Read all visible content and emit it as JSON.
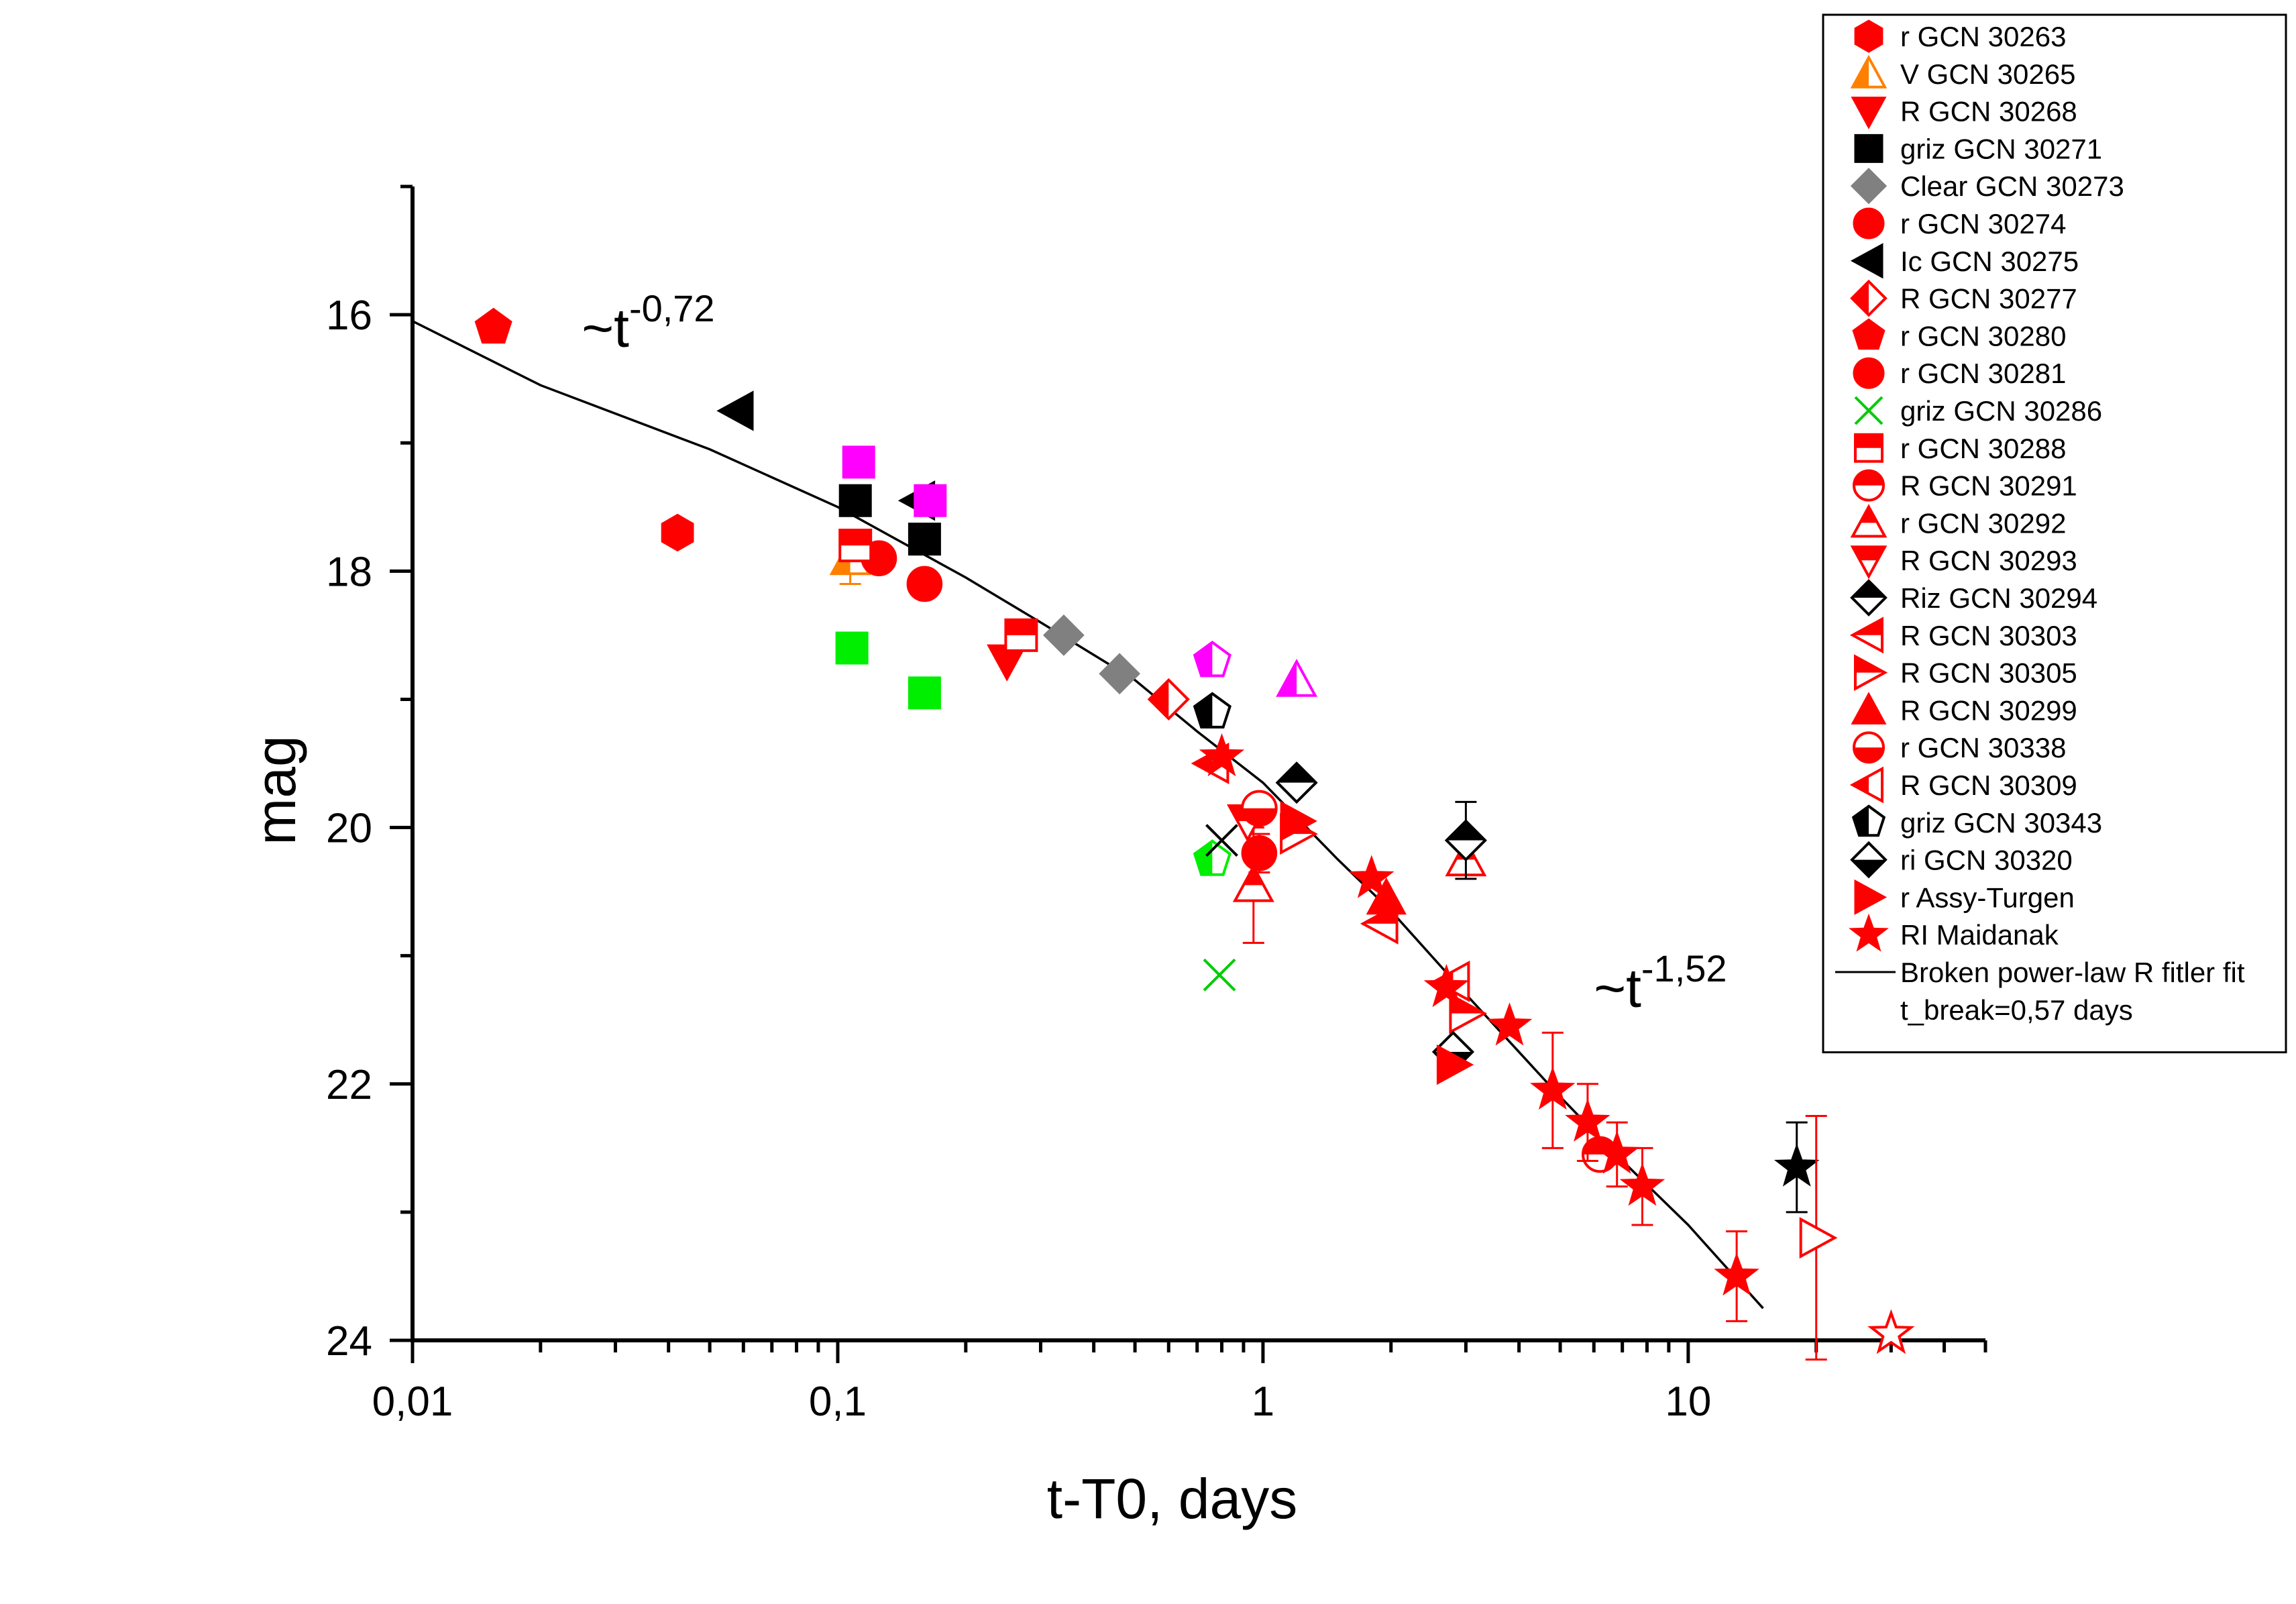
{
  "chart_data": {
    "type": "scatter",
    "xlabel": "t-T0, days",
    "ylabel": "mag",
    "xscale": "log",
    "xlim": [
      0.01,
      50
    ],
    "ylim": [
      24,
      15
    ],
    "x_ticks": [
      {
        "value": 0.01,
        "label": "0,01"
      },
      {
        "value": 0.1,
        "label": "0,1"
      },
      {
        "value": 1,
        "label": "1"
      },
      {
        "value": 10,
        "label": "10"
      }
    ],
    "y_ticks": [
      {
        "value": 16,
        "label": "16"
      },
      {
        "value": 18,
        "label": "18"
      },
      {
        "value": 20,
        "label": "20"
      },
      {
        "value": 22,
        "label": "22"
      },
      {
        "value": 24,
        "label": "24"
      }
    ],
    "legend_position": "top-right",
    "annotations": [
      {
        "base": "~t",
        "exp": "-0,72",
        "x": 0.025,
        "y": 16.25
      },
      {
        "base": "~t",
        "exp": "-1,52",
        "x": 6.0,
        "y": 21.4
      }
    ],
    "fit": {
      "name": "Broken power-law R fitler fit",
      "note": "t_break=0,57 days",
      "x": [
        0.01,
        0.02,
        0.05,
        0.1,
        0.2,
        0.3,
        0.5,
        0.7,
        1.0,
        1.5,
        2.0,
        3.0,
        5.0,
        7.0,
        10.0,
        15.0
      ],
      "y": [
        16.05,
        16.55,
        17.05,
        17.5,
        18.05,
        18.4,
        18.85,
        19.25,
        19.65,
        20.25,
        20.65,
        21.3,
        22.1,
        22.6,
        23.1,
        23.75
      ]
    },
    "series": [
      {
        "name": "r GCN 30263",
        "marker": "hexagon",
        "color": "#ff0000",
        "fill": "full",
        "points": [
          {
            "x": 0.042,
            "y": 17.7
          }
        ]
      },
      {
        "name": "V GCN 30265",
        "marker": "triangle-up",
        "color": "#ff8000",
        "fill": "half-left",
        "points": [
          {
            "x": 0.107,
            "y": 17.9,
            "err": 0.2
          }
        ]
      },
      {
        "name": "R GCN 30268",
        "marker": "triangle-down",
        "color": "#ff0000",
        "fill": "full",
        "points": [
          {
            "x": 0.25,
            "y": 18.7
          }
        ]
      },
      {
        "name": "griz GCN 30271",
        "marker": "square",
        "color": "#000000",
        "fill": "full",
        "points": [
          {
            "x": 0.11,
            "y": 17.45
          },
          {
            "x": 0.16,
            "y": 17.75
          }
        ]
      },
      {
        "name": "Clear GCN 30273",
        "marker": "diamond",
        "color": "#808080",
        "fill": "full",
        "points": [
          {
            "x": 0.34,
            "y": 18.5
          },
          {
            "x": 0.46,
            "y": 18.8
          }
        ]
      },
      {
        "name": "r GCN 30274",
        "marker": "circle",
        "color": "#ff0000",
        "fill": "full",
        "points": [
          {
            "x": 0.125,
            "y": 17.9
          },
          {
            "x": 0.16,
            "y": 18.1
          }
        ]
      },
      {
        "name": "Ic GCN 30275",
        "marker": "triangle-left",
        "color": "#000000",
        "fill": "full",
        "points": [
          {
            "x": 0.058,
            "y": 16.75
          },
          {
            "x": 0.155,
            "y": 17.45
          }
        ]
      },
      {
        "name": "R GCN 30277",
        "marker": "diamond",
        "color": "#ff0000",
        "fill": "half-left",
        "points": [
          {
            "x": 0.6,
            "y": 19.0
          }
        ]
      },
      {
        "name": "r GCN 30280",
        "marker": "pentagon",
        "color": "#ff0000",
        "fill": "full",
        "points": [
          {
            "x": 0.0155,
            "y": 16.1
          }
        ]
      },
      {
        "name": "r GCN 30281",
        "marker": "sphere",
        "color": "#ff0000",
        "fill": "full",
        "points": [
          {
            "x": 0.98,
            "y": 20.2,
            "err": 0.15
          }
        ]
      },
      {
        "name": "griz GCN 30286",
        "marker": "x",
        "color": "#00cc00",
        "fill": "none",
        "points": [
          {
            "x": 0.79,
            "y": 21.15
          }
        ]
      },
      {
        "name": "r GCN 30288",
        "marker": "square",
        "color": "#ff0000",
        "fill": "half-top",
        "points": [
          {
            "x": 0.11,
            "y": 17.8
          },
          {
            "x": 0.27,
            "y": 18.5
          }
        ]
      },
      {
        "name": "R GCN 30291",
        "marker": "circle",
        "color": "#ff0000",
        "fill": "half-top",
        "points": [
          {
            "x": 6.2,
            "y": 22.55
          }
        ]
      },
      {
        "name": "r GCN 30292",
        "marker": "triangle-up",
        "color": "#ff0000",
        "fill": "half-top",
        "points": [
          {
            "x": 0.95,
            "y": 20.45,
            "err": 0.45
          },
          {
            "x": 3.0,
            "y": 20.25
          }
        ]
      },
      {
        "name": "R GCN 30293",
        "marker": "triangle-down",
        "color": "#ff0000",
        "fill": "half-top",
        "points": [
          {
            "x": 0.92,
            "y": 19.95
          }
        ]
      },
      {
        "name": "Riz GCN 30294",
        "marker": "diamond",
        "color": "#000000",
        "fill": "half-top",
        "points": [
          {
            "x": 1.2,
            "y": 19.65
          },
          {
            "x": 3.0,
            "y": 20.1,
            "err": 0.3
          }
        ]
      },
      {
        "name": "R GCN 30303",
        "marker": "triangle-left",
        "color": "#ff0000",
        "fill": "half-top",
        "points": [
          {
            "x": 1.9,
            "y": 20.75
          }
        ]
      },
      {
        "name": "R GCN 30305",
        "marker": "triangle-right",
        "color": "#ff0000",
        "fill": "half-top",
        "points": [
          {
            "x": 1.2,
            "y": 20.05
          },
          {
            "x": 3.0,
            "y": 21.45
          }
        ]
      },
      {
        "name": "R GCN 30299",
        "marker": "triangle-up",
        "color": "#ff0000",
        "fill": "full",
        "points": [
          {
            "x": 1.95,
            "y": 20.55
          }
        ]
      },
      {
        "name": "r GCN 30338",
        "marker": "circle",
        "color": "#ff0000",
        "fill": "half-bottom",
        "points": [
          {
            "x": 0.98,
            "y": 19.85
          }
        ]
      },
      {
        "name": "R GCN 30309",
        "marker": "triangle-left",
        "color": "#ff0000",
        "fill": "half-left",
        "points": [
          {
            "x": 0.76,
            "y": 19.5
          },
          {
            "x": 2.8,
            "y": 21.2
          }
        ]
      },
      {
        "name": "griz GCN 30343",
        "marker": "pentagon",
        "color": "#000000",
        "fill": "half-left",
        "points": [
          {
            "x": 0.76,
            "y": 19.1
          }
        ]
      },
      {
        "name": "ri GCN 30320",
        "marker": "diamond",
        "color": "#000000",
        "fill": "half-bottom",
        "points": [
          {
            "x": 2.8,
            "y": 21.75
          }
        ]
      },
      {
        "name": "r Assy-Turgen",
        "marker": "triangle-right",
        "color": "#ff0000",
        "fill": "full",
        "points": [
          {
            "x": 2.8,
            "y": 21.85
          },
          {
            "x": 1.2,
            "y": 19.95
          }
        ]
      },
      {
        "name": "RI Maidanak",
        "marker": "star",
        "color": "#ff0000",
        "fill": "full",
        "points": [
          {
            "x": 0.8,
            "y": 19.45
          },
          {
            "x": 1.8,
            "y": 20.4
          },
          {
            "x": 2.7,
            "y": 21.25
          },
          {
            "x": 3.8,
            "y": 21.55
          },
          {
            "x": 4.8,
            "y": 22.05,
            "err": 0.45
          },
          {
            "x": 5.8,
            "y": 22.3,
            "err": 0.3
          },
          {
            "x": 6.8,
            "y": 22.55,
            "err": 0.25
          },
          {
            "x": 7.8,
            "y": 22.8,
            "err": 0.3
          },
          {
            "x": 13.0,
            "y": 23.5,
            "err": 0.35
          }
        ]
      }
    ],
    "extra_points": [
      {
        "marker": "square",
        "color": "#ff00ff",
        "fill": "full",
        "x": 0.112,
        "y": 17.15
      },
      {
        "marker": "square",
        "color": "#ff00ff",
        "fill": "full",
        "x": 0.165,
        "y": 17.45
      },
      {
        "marker": "square",
        "color": "#00ee00",
        "fill": "full",
        "x": 0.108,
        "y": 18.6
      },
      {
        "marker": "square",
        "color": "#00ee00",
        "fill": "full",
        "x": 0.16,
        "y": 18.95
      },
      {
        "marker": "pentagon",
        "color": "#ff00ff",
        "fill": "half-left",
        "x": 0.76,
        "y": 18.7
      },
      {
        "marker": "triangle-up",
        "color": "#ff00ff",
        "fill": "half-left",
        "x": 1.2,
        "y": 18.85
      },
      {
        "marker": "pentagon",
        "color": "#00ee00",
        "fill": "half-left",
        "x": 0.76,
        "y": 20.25
      },
      {
        "marker": "x",
        "color": "#000000",
        "fill": "none",
        "x": 0.8,
        "y": 20.1
      },
      {
        "marker": "star",
        "color": "#000000",
        "fill": "full",
        "x": 18.0,
        "y": 22.65,
        "err": 0.35
      },
      {
        "marker": "triangle-right",
        "color": "#ff0000",
        "fill": "none",
        "x": 20.0,
        "y": 23.2,
        "err": 0.95
      },
      {
        "marker": "star",
        "color": "#ff0000",
        "fill": "none",
        "x": 30.0,
        "y": 23.95
      }
    ]
  }
}
